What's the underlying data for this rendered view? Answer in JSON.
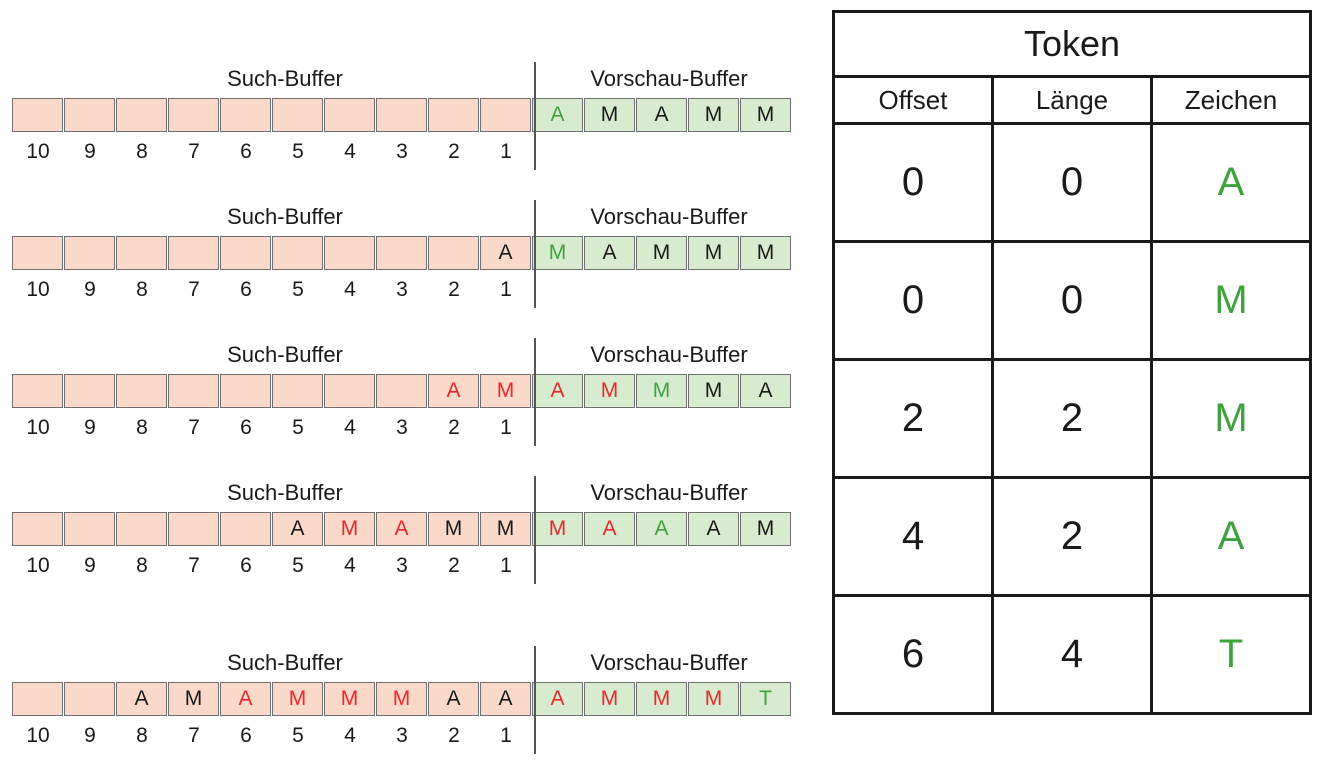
{
  "labels": {
    "search": "Such-Buffer",
    "lookahead": "Vorschau-Buffer"
  },
  "positions": [
    "10",
    "9",
    "8",
    "7",
    "6",
    "5",
    "4",
    "3",
    "2",
    "1"
  ],
  "colors": {
    "search_bg": "#fbd9c9",
    "lookahead_bg": "#d7ecce",
    "red": "#e8282f",
    "green": "#3fa23d",
    "black": "#1a1a1a"
  },
  "steps": [
    {
      "search": [
        "",
        "",
        "",
        "",
        "",
        "",
        "",
        "",
        "",
        ""
      ],
      "search_colors": [
        "",
        "",
        "",
        "",
        "",
        "",
        "",
        "",
        "",
        ""
      ],
      "lookahead": [
        "A",
        "M",
        "A",
        "M",
        "M"
      ],
      "lookahead_colors": [
        "green",
        "black",
        "black",
        "black",
        "black"
      ]
    },
    {
      "search": [
        "",
        "",
        "",
        "",
        "",
        "",
        "",
        "",
        "",
        "A"
      ],
      "search_colors": [
        "",
        "",
        "",
        "",
        "",
        "",
        "",
        "",
        "",
        "black"
      ],
      "lookahead": [
        "M",
        "A",
        "M",
        "M",
        "M"
      ],
      "lookahead_colors": [
        "green",
        "black",
        "black",
        "black",
        "black"
      ]
    },
    {
      "search": [
        "",
        "",
        "",
        "",
        "",
        "",
        "",
        "",
        "A",
        "M"
      ],
      "search_colors": [
        "",
        "",
        "",
        "",
        "",
        "",
        "",
        "",
        "red",
        "red"
      ],
      "lookahead": [
        "A",
        "M",
        "M",
        "M",
        "A"
      ],
      "lookahead_colors": [
        "red",
        "red",
        "green",
        "black",
        "black"
      ]
    },
    {
      "search": [
        "",
        "",
        "",
        "",
        "",
        "A",
        "M",
        "A",
        "M",
        "M"
      ],
      "search_colors": [
        "",
        "",
        "",
        "",
        "",
        "black",
        "red",
        "red",
        "black",
        "black"
      ],
      "lookahead": [
        "M",
        "A",
        "A",
        "A",
        "M"
      ],
      "lookahead_colors": [
        "red",
        "red",
        "green",
        "black",
        "black"
      ]
    },
    {
      "search": [
        "",
        "",
        "A",
        "M",
        "A",
        "M",
        "M",
        "M",
        "A",
        "A"
      ],
      "search_colors": [
        "",
        "",
        "black",
        "black",
        "red",
        "red",
        "red",
        "red",
        "black",
        "black"
      ],
      "lookahead": [
        "A",
        "M",
        "M",
        "M",
        "T"
      ],
      "lookahead_colors": [
        "red",
        "red",
        "red",
        "red",
        "green"
      ]
    }
  ],
  "token_table": {
    "title": "Token",
    "headers": [
      "Offset",
      "Länge",
      "Zeichen"
    ],
    "rows": [
      [
        "0",
        "0",
        "A"
      ],
      [
        "0",
        "0",
        "M"
      ],
      [
        "2",
        "2",
        "M"
      ],
      [
        "4",
        "2",
        "A"
      ],
      [
        "6",
        "4",
        "T"
      ]
    ]
  }
}
